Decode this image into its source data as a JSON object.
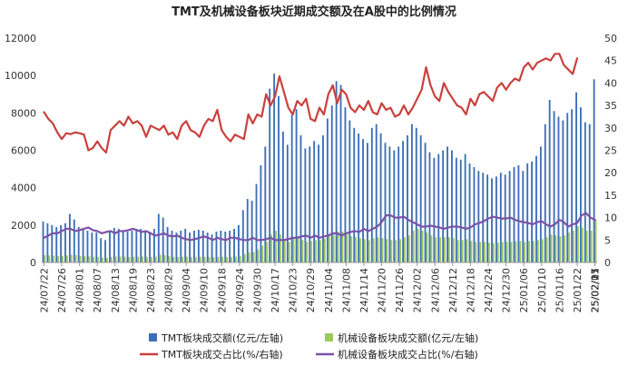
{
  "chart_data": {
    "type": "bar+line",
    "title": "TMT及机械设备板块近期成交额及在A股中的比例情况",
    "y_left": {
      "lim": [
        0,
        12000
      ],
      "ticks": [
        0,
        2000,
        4000,
        6000,
        8000,
        10000,
        12000
      ]
    },
    "y_right": {
      "lim": [
        0,
        50
      ],
      "ticks": [
        0,
        5,
        10,
        15,
        20,
        25,
        30,
        35,
        40,
        45,
        50
      ]
    },
    "x_tick_labels": [
      "24/07/22",
      "24/07/26",
      "24/08/01",
      "24/08/07",
      "24/08/13",
      "24/08/19",
      "24/08/23",
      "24/08/29",
      "24/09/04",
      "24/09/10",
      "24/09/18",
      "24/09/24",
      "24/09/30",
      "24/10/17",
      "24/10/23",
      "24/10/29",
      "24/11/04",
      "24/11/08",
      "24/11/14",
      "24/11/20",
      "24/11/26",
      "24/12/02",
      "24/12/06",
      "24/12/12",
      "24/12/18",
      "24/12/24",
      "24/12/30",
      "25/01/06",
      "25/01/10",
      "25/01/16",
      "25/01/22",
      "25/02/05",
      "25/02/11",
      "25/02/17",
      "25/02/21"
    ],
    "points_per_tick": 4,
    "grid": false,
    "legend_position": "bottom",
    "series": [
      {
        "name": "TMT板块成交额(亿元/左轴)",
        "type": "bar",
        "axis": "left",
        "color": "#3d6fb6",
        "values": [
          2200,
          2100,
          2000,
          1900,
          2000,
          2100,
          2600,
          2300,
          1900,
          1800,
          1700,
          1600,
          1600,
          1300,
          1200,
          1700,
          1850,
          1800,
          1700,
          1650,
          1700,
          1750,
          1800,
          1700,
          1650,
          1800,
          2600,
          2400,
          1900,
          1700,
          1600,
          1700,
          1800,
          1600,
          1700,
          1750,
          1700,
          1600,
          1500,
          1650,
          1700,
          1650,
          1700,
          1800,
          2000,
          2800,
          3400,
          3300,
          4200,
          5200,
          6200,
          9300,
          10100,
          8900,
          7000,
          6300,
          7900,
          8200,
          6800,
          6100,
          6200,
          6500,
          6300,
          6800,
          7700,
          8400,
          9700,
          9500,
          8300,
          7600,
          7200,
          6900,
          6600,
          6400,
          7200,
          7400,
          6900,
          6400,
          6200,
          6000,
          6200,
          6500,
          6800,
          7400,
          7200,
          6800,
          6400,
          5900,
          5600,
          5800,
          6000,
          6200,
          6000,
          5600,
          5500,
          5800,
          5300,
          5100,
          4900,
          4800,
          4700,
          4500,
          4600,
          4800,
          4700,
          4900,
          5100,
          5200,
          4900,
          5300,
          5400,
          5700,
          6200,
          7400,
          8700,
          8100,
          7800,
          7600,
          8000,
          8200,
          9100,
          8300,
          7500,
          7400,
          9800
        ]
      },
      {
        "name": "机械设备板块成交额(亿元/左轴)",
        "type": "bar",
        "axis": "left",
        "color": "#9dc85e",
        "values": [
          400,
          380,
          360,
          350,
          360,
          380,
          420,
          400,
          350,
          330,
          320,
          300,
          300,
          260,
          240,
          300,
          320,
          320,
          300,
          290,
          300,
          310,
          320,
          300,
          290,
          310,
          420,
          400,
          330,
          300,
          290,
          300,
          310,
          290,
          300,
          310,
          300,
          290,
          280,
          290,
          300,
          290,
          300,
          320,
          350,
          450,
          550,
          560,
          700,
          900,
          1100,
          1500,
          1700,
          1500,
          1200,
          1100,
          1300,
          1400,
          1200,
          1100,
          1150,
          1200,
          1200,
          1300,
          1400,
          1500,
          1650,
          1650,
          1500,
          1400,
          1350,
          1300,
          1250,
          1200,
          1300,
          1350,
          1300,
          1250,
          1200,
          1200,
          1250,
          1350,
          1450,
          1700,
          1800,
          1700,
          1600,
          1450,
          1350,
          1350,
          1350,
          1350,
          1300,
          1200,
          1200,
          1250,
          1150,
          1100,
          1100,
          1100,
          1050,
          1050,
          1050,
          1100,
          1100,
          1100,
          1150,
          1150,
          1100,
          1150,
          1150,
          1200,
          1250,
          1350,
          1500,
          1450,
          1400,
          1450,
          1600,
          1700,
          1950,
          1850,
          1700,
          1700,
          2300
        ]
      },
      {
        "name": "TMT板块成交占比(%/右轴)",
        "type": "line",
        "axis": "right",
        "color": "#c9413d",
        "values": [
          33.5,
          32.0,
          31.0,
          29.0,
          27.5,
          28.8,
          28.6,
          29.0,
          28.8,
          28.5,
          25.0,
          25.5,
          27.0,
          25.5,
          24.5,
          29.5,
          30.5,
          31.5,
          30.5,
          32.5,
          31.0,
          31.5,
          30.5,
          28.0,
          30.5,
          30.0,
          29.5,
          30.5,
          28.5,
          29.0,
          27.5,
          30.5,
          31.5,
          29.5,
          29.0,
          28.0,
          30.5,
          32.0,
          31.5,
          34.0,
          29.5,
          28.0,
          27.0,
          28.5,
          28.0,
          27.5,
          33.0,
          31.0,
          33.0,
          32.5,
          37.5,
          35.0,
          37.0,
          41.5,
          38.0,
          34.5,
          33.0,
          36.0,
          35.0,
          36.5,
          32.0,
          31.5,
          34.5,
          33.0,
          37.5,
          39.5,
          35.5,
          38.5,
          37.5,
          34.5,
          33.5,
          35.0,
          34.0,
          36.0,
          33.5,
          33.0,
          35.5,
          34.0,
          34.5,
          32.5,
          33.0,
          35.0,
          33.0,
          34.5,
          36.5,
          38.5,
          43.5,
          39.5,
          37.0,
          36.0,
          40.0,
          38.0,
          36.5,
          35.0,
          34.5,
          33.0,
          36.5,
          35.0,
          37.5,
          38.0,
          37.0,
          36.0,
          39.0,
          40.0,
          38.5,
          40.0,
          41.0,
          40.5,
          43.5,
          44.5,
          43.0,
          44.5,
          45.0,
          45.5,
          45.0,
          46.5,
          46.5,
          44.0,
          43.0,
          42.0,
          45.5
        ]
      },
      {
        "name": "机械设备板块成交占比(%/右轴)",
        "type": "line",
        "axis": "right",
        "color": "#7b52a8",
        "values": [
          5.5,
          6.0,
          6.5,
          6.5,
          7.0,
          7.5,
          7.5,
          7.0,
          7.2,
          7.5,
          7.8,
          7.2,
          7.0,
          6.5,
          6.8,
          7.0,
          6.5,
          7.0,
          7.0,
          7.2,
          7.5,
          7.2,
          6.8,
          7.0,
          6.5,
          6.0,
          6.2,
          6.5,
          6.0,
          5.8,
          6.0,
          5.5,
          5.2,
          5.0,
          5.2,
          5.5,
          5.8,
          5.5,
          5.0,
          5.5,
          5.2,
          5.0,
          5.5,
          5.5,
          5.2,
          5.0,
          5.0,
          5.5,
          5.0,
          5.0,
          5.2,
          5.5,
          5.0,
          5.0,
          5.0,
          5.2,
          5.5,
          5.5,
          5.8,
          6.0,
          5.5,
          6.0,
          5.5,
          5.8,
          6.0,
          6.5,
          6.5,
          6.0,
          6.5,
          6.8,
          7.0,
          6.8,
          7.5,
          7.0,
          7.5,
          8.0,
          9.0,
          10.5,
          10.5,
          10.0,
          10.0,
          10.2,
          9.5,
          9.0,
          8.5,
          8.0,
          8.0,
          8.2,
          8.0,
          7.8,
          7.5,
          7.8,
          8.0,
          8.0,
          7.8,
          7.5,
          7.8,
          8.5,
          8.8,
          9.2,
          9.8,
          10.2,
          10.0,
          9.8,
          9.8,
          10.0,
          9.5,
          9.2,
          9.0,
          8.8,
          8.5,
          9.0,
          9.2,
          8.5,
          8.0,
          8.5,
          9.5,
          9.0,
          8.0,
          8.5,
          8.8,
          10.5,
          11.0,
          10.0,
          9.5
        ]
      }
    ]
  }
}
